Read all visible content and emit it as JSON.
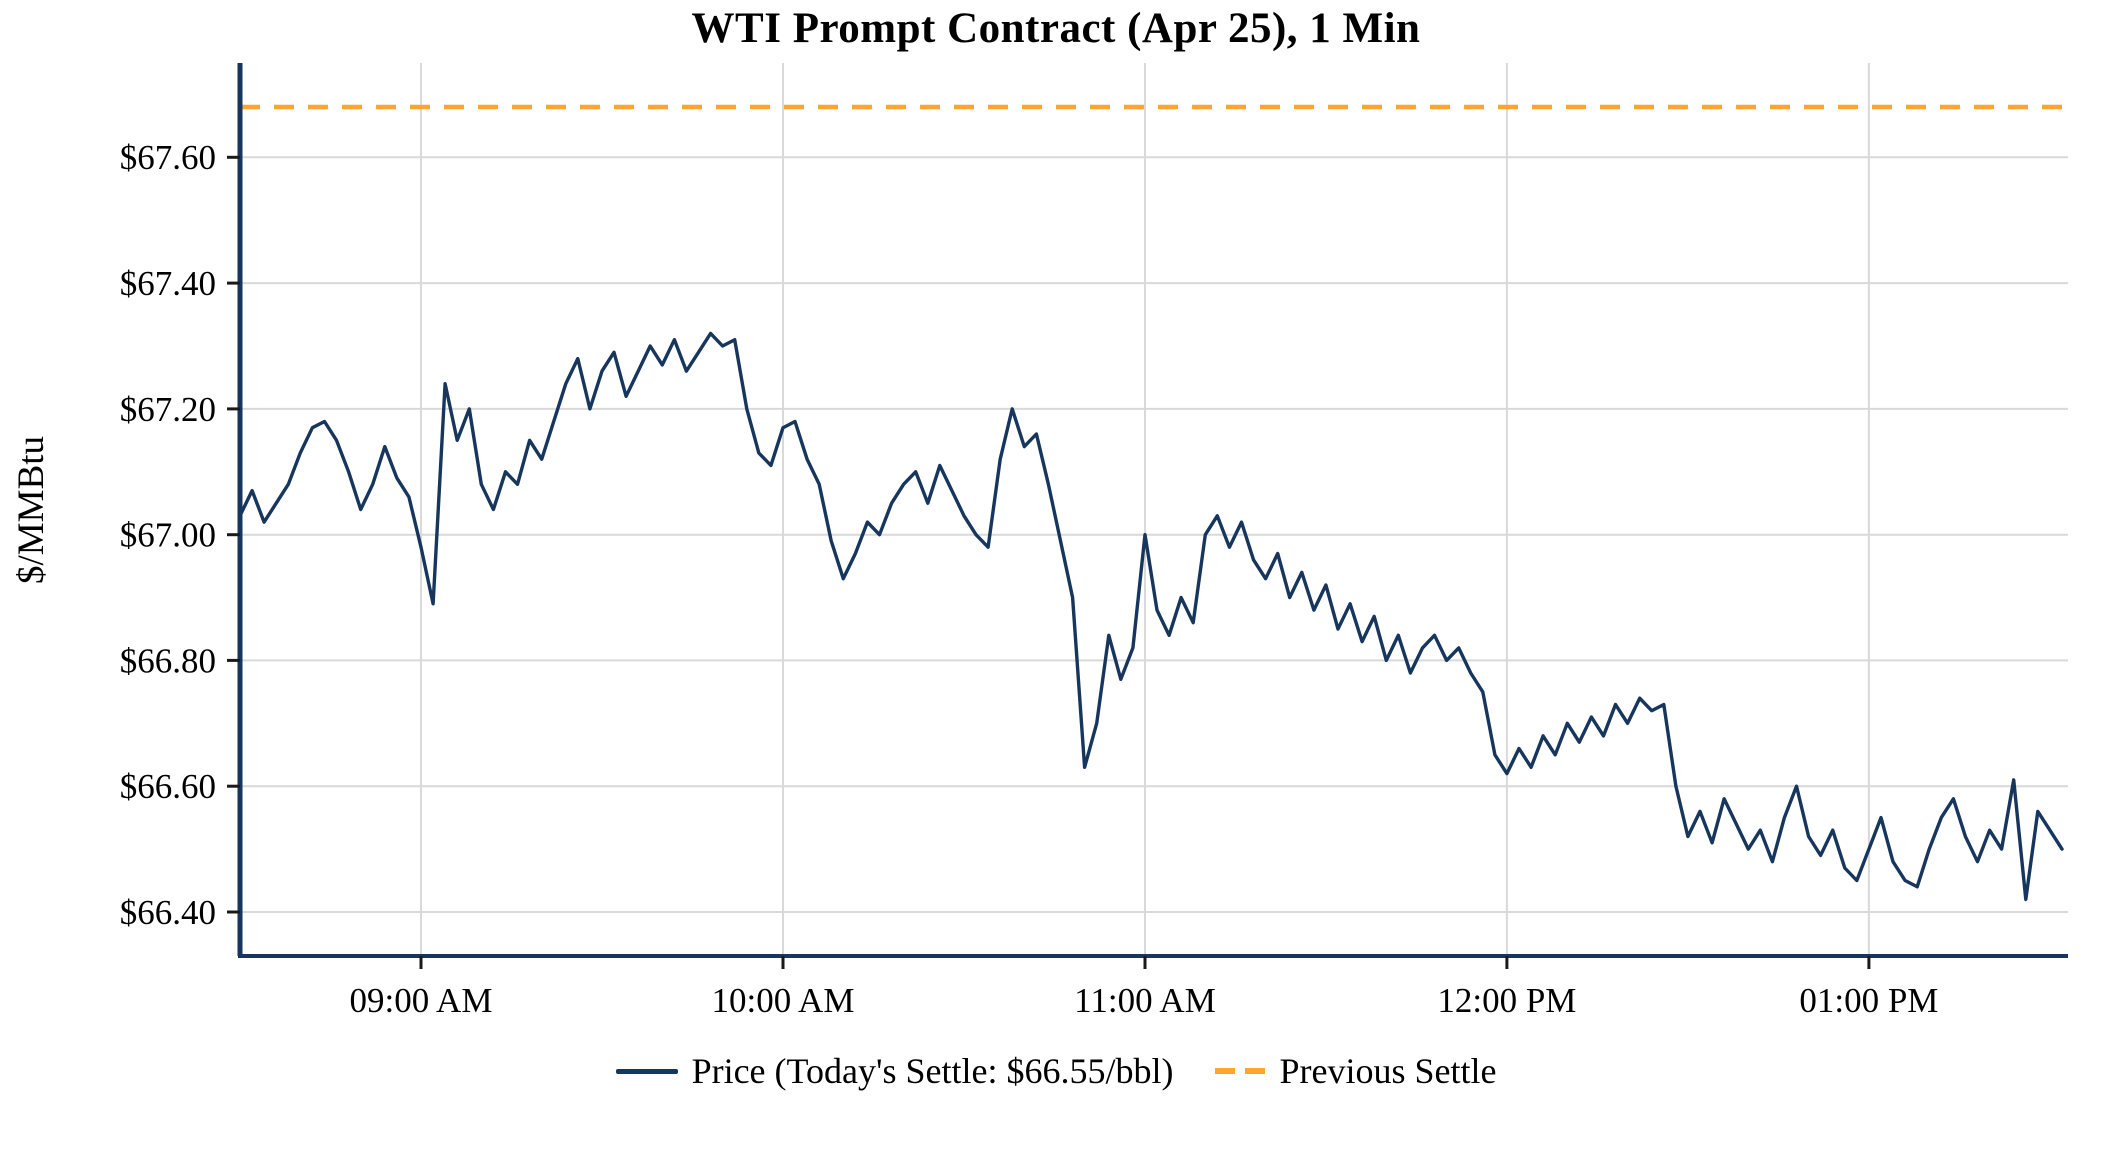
{
  "colors": {
    "price_line": "#17365d",
    "previous_settle_line": "#FFA42E",
    "grid": "#d9d9d9",
    "axis": "#17365d",
    "tick": "#1a1a1a",
    "text": "#000000",
    "background": "#ffffff"
  },
  "chart_data": {
    "type": "line",
    "title": "WTI Prompt Contract (Apr 25), 1 Min",
    "xlabel": "",
    "ylabel": "$/MMBtu",
    "ylim": [
      66.33,
      67.75
    ],
    "x_range_minutes": [
      0,
      303
    ],
    "grid": true,
    "legend_position": "bottom-center",
    "x_ticks": [
      {
        "minutes": 30,
        "label": "09:00 AM"
      },
      {
        "minutes": 90,
        "label": "10:00 AM"
      },
      {
        "minutes": 150,
        "label": "11:00 AM"
      },
      {
        "minutes": 210,
        "label": "12:00 PM"
      },
      {
        "minutes": 270,
        "label": "01:00 PM"
      }
    ],
    "y_ticks": [
      {
        "value": 66.4,
        "label": "$66.40"
      },
      {
        "value": 66.6,
        "label": "$66.60"
      },
      {
        "value": 66.8,
        "label": "$66.80"
      },
      {
        "value": 67.0,
        "label": "$67.00"
      },
      {
        "value": 67.2,
        "label": "$67.20"
      },
      {
        "value": 67.4,
        "label": "$67.40"
      },
      {
        "value": 67.6,
        "label": "$67.60"
      }
    ],
    "previous_settle": 67.68,
    "todays_settle": 66.55,
    "legend": {
      "price": "Price (Today's Settle: $66.55/bbl)",
      "previous_settle": "Previous Settle"
    },
    "series": [
      {
        "name": "Price",
        "interval_minutes": 2,
        "values": [
          67.03,
          67.07,
          67.02,
          67.05,
          67.08,
          67.13,
          67.17,
          67.18,
          67.15,
          67.1,
          67.04,
          67.08,
          67.14,
          67.09,
          67.06,
          66.98,
          66.89,
          67.24,
          67.15,
          67.2,
          67.08,
          67.04,
          67.1,
          67.08,
          67.15,
          67.12,
          67.18,
          67.24,
          67.28,
          67.2,
          67.26,
          67.29,
          67.22,
          67.26,
          67.3,
          67.27,
          67.31,
          67.26,
          67.29,
          67.32,
          67.3,
          67.31,
          67.2,
          67.13,
          67.11,
          67.17,
          67.18,
          67.12,
          67.08,
          66.99,
          66.93,
          66.97,
          67.02,
          67.0,
          67.05,
          67.08,
          67.1,
          67.05,
          67.11,
          67.07,
          67.03,
          67.0,
          66.98,
          67.12,
          67.2,
          67.14,
          67.16,
          67.08,
          66.99,
          66.9,
          66.63,
          66.7,
          66.84,
          66.77,
          66.82,
          67.0,
          66.88,
          66.84,
          66.9,
          66.86,
          67.0,
          67.03,
          66.98,
          67.02,
          66.96,
          66.93,
          66.97,
          66.9,
          66.94,
          66.88,
          66.92,
          66.85,
          66.89,
          66.83,
          66.87,
          66.8,
          66.84,
          66.78,
          66.82,
          66.84,
          66.8,
          66.82,
          66.78,
          66.75,
          66.65,
          66.62,
          66.66,
          66.63,
          66.68,
          66.65,
          66.7,
          66.67,
          66.71,
          66.68,
          66.73,
          66.7,
          66.74,
          66.72,
          66.73,
          66.6,
          66.52,
          66.56,
          66.51,
          66.58,
          66.54,
          66.5,
          66.53,
          66.48,
          66.55,
          66.6,
          66.52,
          66.49,
          66.53,
          66.47,
          66.45,
          66.5,
          66.55,
          66.48,
          66.45,
          66.44,
          66.5,
          66.55,
          66.58,
          66.52,
          66.48,
          66.53,
          66.5,
          66.61,
          66.42,
          66.56,
          66.53,
          66.5
        ]
      }
    ]
  }
}
